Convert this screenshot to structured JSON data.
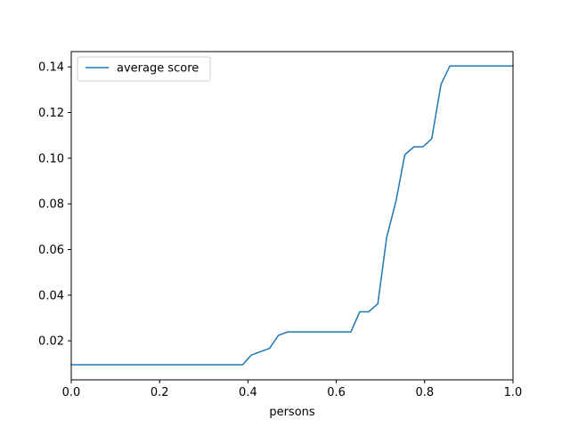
{
  "chart_data": {
    "type": "line",
    "xlabel": "persons",
    "ylabel": "",
    "xlim": [
      0.0,
      1.0
    ],
    "ylim": [
      0.0029,
      0.1467
    ],
    "x_ticks": [
      "0.0",
      "0.2",
      "0.4",
      "0.6",
      "0.8",
      "1.0"
    ],
    "y_ticks": [
      "0.02",
      "0.04",
      "0.06",
      "0.08",
      "0.10",
      "0.12",
      "0.14"
    ],
    "grid": false,
    "legend": {
      "position": "upper-left"
    },
    "series": [
      {
        "name": "average score",
        "color": "#1f77b4",
        "points": [
          [
            0.0,
            0.0095
          ],
          [
            0.388,
            0.0095
          ],
          [
            0.408,
            0.0138
          ],
          [
            0.449,
            0.0167
          ],
          [
            0.469,
            0.0224
          ],
          [
            0.49,
            0.0239
          ],
          [
            0.633,
            0.0239
          ],
          [
            0.653,
            0.0327
          ],
          [
            0.673,
            0.0327
          ],
          [
            0.694,
            0.0362
          ],
          [
            0.714,
            0.0653
          ],
          [
            0.735,
            0.0811
          ],
          [
            0.755,
            0.1015
          ],
          [
            0.776,
            0.105
          ],
          [
            0.796,
            0.105
          ],
          [
            0.816,
            0.1085
          ],
          [
            0.837,
            0.1323
          ],
          [
            0.857,
            0.1404
          ],
          [
            1.0,
            0.1404
          ]
        ]
      }
    ]
  }
}
